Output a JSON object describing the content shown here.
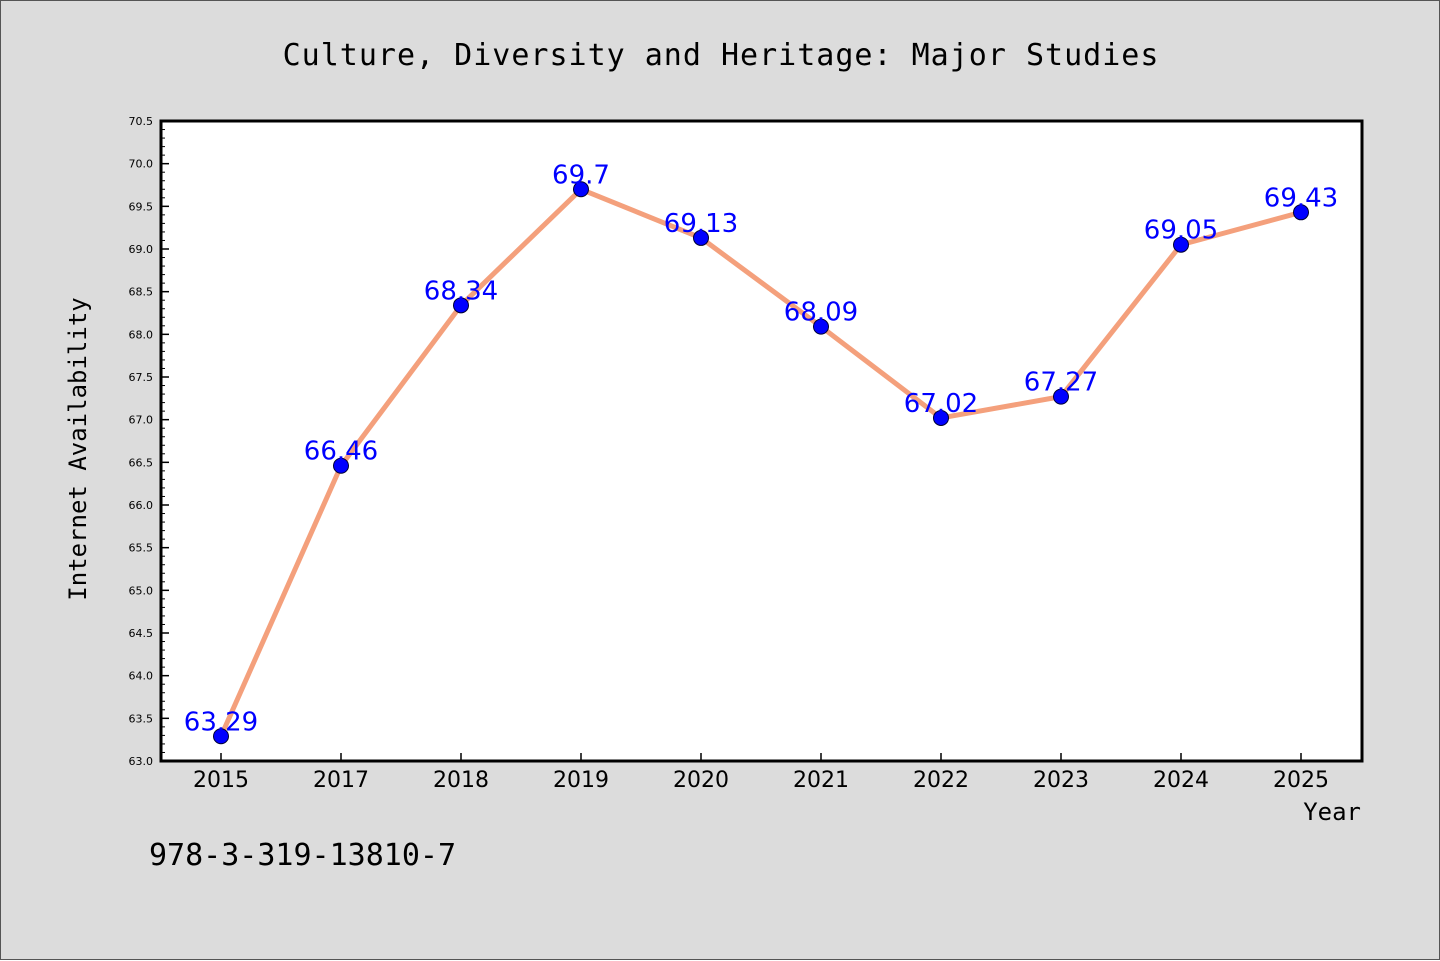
{
  "chart_data": {
    "type": "line",
    "title": "Culture, Diversity and Heritage: Major Studies",
    "xlabel": "Year",
    "ylabel": "Internet Availability",
    "categories": [
      "2015",
      "2017",
      "2018",
      "2019",
      "2020",
      "2021",
      "2022",
      "2023",
      "2024",
      "2025"
    ],
    "series": [
      {
        "values": [
          63.29,
          66.46,
          68.34,
          69.7,
          69.13,
          68.09,
          67.02,
          67.27,
          69.05,
          69.43
        ],
        "data_labels": [
          "63.29",
          "66.46",
          "68.34",
          "69.7",
          "69.13",
          "68.09",
          "67.02",
          "67.27",
          "69.05",
          "69.43"
        ],
        "line_color": "#f4a07c",
        "marker_color": "#0000ff"
      }
    ],
    "ylim": [
      63.0,
      70.5
    ],
    "yticks": [
      "63.0",
      "63.5",
      "64.0",
      "64.5",
      "65.0",
      "65.5",
      "66.0",
      "66.5",
      "67.0",
      "67.5",
      "68.0",
      "68.5",
      "69.0",
      "69.5",
      "70.0",
      "70.5"
    ],
    "grid": false,
    "legend": "none"
  },
  "footer": {
    "isbn": "978-3-319-13810-7"
  },
  "colors": {
    "figure_background": "#dcdcdc",
    "plot_background": "#ffffff",
    "data_label": "#0000ff"
  }
}
